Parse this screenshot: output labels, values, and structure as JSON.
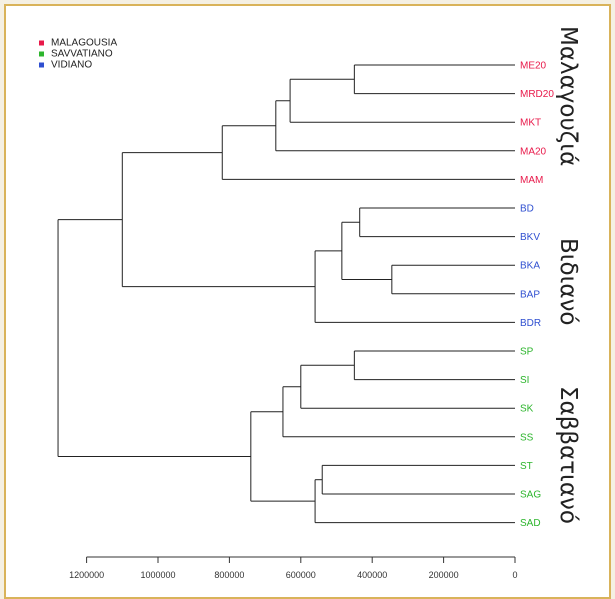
{
  "legend": [
    {
      "label": "MALAGOUSIA",
      "color": "#e8194a"
    },
    {
      "label": "SAVVATIANO",
      "color": "#2db52d"
    },
    {
      "label": "VIDIANO",
      "color": "#2f4fd0"
    }
  ],
  "group_labels": {
    "malagouzia": "Μαλαγουζιά",
    "vidiano": "Βιδιανό",
    "savvatiano": "Σαββατιανό"
  },
  "chart_data": {
    "type": "dendrogram",
    "x_ticks": [
      "1200000",
      "1000000",
      "800000",
      "600000",
      "400000",
      "200000",
      "0"
    ],
    "x_tick_values": [
      1200000,
      1000000,
      800000,
      600000,
      400000,
      200000,
      0
    ],
    "xlim": [
      1200000,
      0
    ],
    "leaves": [
      {
        "name": "ME20",
        "group": "MALAGOUSIA",
        "color": "#e8194a"
      },
      {
        "name": "MRD20",
        "group": "MALAGOUSIA",
        "color": "#e8194a"
      },
      {
        "name": "MKT",
        "group": "MALAGOUSIA",
        "color": "#e8194a"
      },
      {
        "name": "MA20",
        "group": "MALAGOUSIA",
        "color": "#e8194a"
      },
      {
        "name": "MAM",
        "group": "MALAGOUSIA",
        "color": "#e8194a"
      },
      {
        "name": "BD",
        "group": "VIDIANO",
        "color": "#2f4fd0"
      },
      {
        "name": "BKV",
        "group": "VIDIANO",
        "color": "#2f4fd0"
      },
      {
        "name": "BKA",
        "group": "VIDIANO",
        "color": "#2f4fd0"
      },
      {
        "name": "BAP",
        "group": "VIDIANO",
        "color": "#2f4fd0"
      },
      {
        "name": "BDR",
        "group": "VIDIANO",
        "color": "#2f4fd0"
      },
      {
        "name": "SP",
        "group": "SAVVATIANO",
        "color": "#2db52d"
      },
      {
        "name": "SI",
        "group": "SAVVATIANO",
        "color": "#2db52d"
      },
      {
        "name": "SK",
        "group": "SAVVATIANO",
        "color": "#2db52d"
      },
      {
        "name": "SS",
        "group": "SAVVATIANO",
        "color": "#2db52d"
      },
      {
        "name": "ST",
        "group": "SAVVATIANO",
        "color": "#2db52d"
      },
      {
        "name": "SAG",
        "group": "SAVVATIANO",
        "color": "#2db52d"
      },
      {
        "name": "SAD",
        "group": "SAVVATIANO",
        "color": "#2db52d"
      }
    ],
    "merges": [
      {
        "id": "m1",
        "children": [
          "ME20",
          "MRD20"
        ],
        "height": 450000
      },
      {
        "id": "m2",
        "children": [
          "m1",
          "MKT"
        ],
        "height": 630000
      },
      {
        "id": "m3",
        "children": [
          "m2",
          "MA20"
        ],
        "height": 670000
      },
      {
        "id": "m4",
        "children": [
          "m3",
          "MAM"
        ],
        "height": 820000
      },
      {
        "id": "b1",
        "children": [
          "BD",
          "BKV"
        ],
        "height": 435000
      },
      {
        "id": "b2",
        "children": [
          "BKA",
          "BAP"
        ],
        "height": 345000
      },
      {
        "id": "b3",
        "children": [
          "b1",
          "b2"
        ],
        "height": 485000
      },
      {
        "id": "b4",
        "children": [
          "b3",
          "BDR"
        ],
        "height": 560000
      },
      {
        "id": "mb",
        "children": [
          "m4",
          "b4"
        ],
        "height": 1100000
      },
      {
        "id": "s1",
        "children": [
          "SP",
          "SI"
        ],
        "height": 450000
      },
      {
        "id": "s2",
        "children": [
          "s1",
          "SK"
        ],
        "height": 600000
      },
      {
        "id": "s3",
        "children": [
          "s2",
          "SS"
        ],
        "height": 650000
      },
      {
        "id": "s4",
        "children": [
          "ST",
          "SAG"
        ],
        "height": 540000
      },
      {
        "id": "s5",
        "children": [
          "s4",
          "SAD"
        ],
        "height": 560000
      },
      {
        "id": "s6",
        "children": [
          "s3",
          "s5"
        ],
        "height": 740000
      },
      {
        "id": "root",
        "children": [
          "mb",
          "s6"
        ],
        "height": 1280000
      }
    ]
  }
}
